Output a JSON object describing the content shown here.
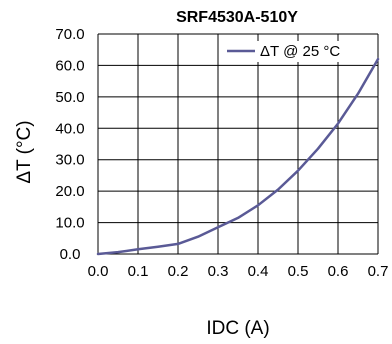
{
  "chart_data": {
    "type": "line",
    "title": "SRF4530A-510Y",
    "xlabel": "IDC (A)",
    "ylabel": "ΔT (°C)",
    "xlim": [
      0.0,
      0.7
    ],
    "ylim": [
      0.0,
      70.0
    ],
    "x_ticks": [
      "0.0",
      "0.1",
      "0.2",
      "0.3",
      "0.4",
      "0.5",
      "0.6",
      "0.7"
    ],
    "y_ticks": [
      "0.0",
      "10.0",
      "20.0",
      "30.0",
      "40.0",
      "50.0",
      "60.0",
      "70.0"
    ],
    "grid": true,
    "legend_position": "top-right",
    "colors": {
      "series": "#5a5a96",
      "grid": "#000000"
    },
    "series": [
      {
        "name": "ΔT @ 25 °C",
        "x": [
          0.0,
          0.05,
          0.1,
          0.15,
          0.2,
          0.25,
          0.3,
          0.35,
          0.4,
          0.45,
          0.5,
          0.55,
          0.6,
          0.65,
          0.7
        ],
        "y": [
          0.0,
          0.6,
          1.5,
          2.3,
          3.2,
          5.5,
          8.5,
          11.5,
          15.5,
          20.5,
          26.5,
          33.5,
          41.5,
          51.0,
          62.0
        ]
      }
    ]
  }
}
